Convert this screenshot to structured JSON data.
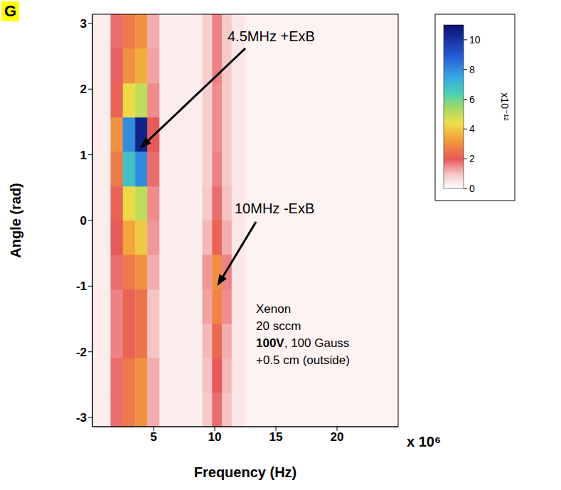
{
  "chart_data": {
    "type": "heatmap",
    "panel": "G",
    "x_label": "Frequency (Hz)",
    "x_multiplier": "x 10⁶",
    "y_label": "Angle (rad)",
    "xlim": [
      0,
      25
    ],
    "xticks": [
      5,
      10,
      15,
      20
    ],
    "ylim": [
      -3.14,
      3.14
    ],
    "yticks": [
      -3,
      -2,
      -1,
      0,
      1,
      2,
      3
    ],
    "grid": false,
    "x_bins": [
      0,
      1.5,
      2.5,
      3.5,
      4.5,
      5.5,
      9,
      9.8,
      10.6,
      11.4,
      12.5,
      25
    ],
    "y_bins": [
      -3.14,
      -2.62,
      -2.09,
      -1.57,
      -1.05,
      -0.52,
      0,
      0.52,
      1.05,
      1.57,
      2.09,
      2.62,
      3.14
    ],
    "cells": [
      [
        0.3,
        1.8,
        2.6,
        3,
        1.2,
        0.3,
        0.9,
        1.8,
        1,
        0.4,
        0.2
      ],
      [
        0.3,
        1.8,
        2.6,
        3,
        1.2,
        0.3,
        1,
        2,
        1.1,
        0.4,
        0.2
      ],
      [
        0.3,
        1.6,
        2.2,
        2.5,
        1,
        0.3,
        1.1,
        2.3,
        1.2,
        0.4,
        0.2
      ],
      [
        0.3,
        1.6,
        2.2,
        2.5,
        1,
        0.3,
        1.3,
        2.8,
        1.5,
        0.4,
        0.2
      ],
      [
        0.3,
        1.8,
        2.6,
        3,
        1.2,
        0.3,
        1.4,
        3,
        1.6,
        0.4,
        0.2
      ],
      [
        0.3,
        2,
        3.4,
        4,
        1.4,
        0.3,
        1.1,
        2.2,
        1.2,
        0.4,
        0.2
      ],
      [
        0.3,
        2.2,
        4.3,
        5,
        1.5,
        0.3,
        0.9,
        1.8,
        1,
        0.4,
        0.2
      ],
      [
        0.3,
        2.6,
        6.8,
        8,
        1.8,
        0.3,
        0.8,
        1.6,
        0.9,
        0.4,
        0.2
      ],
      [
        0.3,
        3,
        8,
        10.5,
        2,
        0.3,
        0.8,
        1.5,
        0.9,
        0.4,
        0.2
      ],
      [
        0.3,
        2.2,
        4.3,
        5,
        1.5,
        0.3,
        0.8,
        1.5,
        0.9,
        0.4,
        0.2
      ],
      [
        0.3,
        1.9,
        3,
        3.5,
        1.3,
        0.3,
        0.8,
        1.6,
        0.9,
        0.4,
        0.2
      ],
      [
        0.3,
        1.8,
        2.6,
        3,
        1.2,
        0.3,
        0.8,
        1.6,
        0.9,
        0.4,
        0.2
      ]
    ],
    "colorbar": {
      "range": [
        0,
        11
      ],
      "ticks": [
        0,
        2,
        4,
        6,
        8,
        10
      ],
      "label": "x10⁻¹²"
    },
    "annotations": [
      {
        "text": "4.5MHz +ExB",
        "x": 3.9,
        "y": 1.1
      },
      {
        "text": "10MHz -ExB",
        "x": 10.2,
        "y": -1.0
      }
    ],
    "notes": [
      "Xenon",
      "20 sccm",
      "100V, 100 Gauss",
      "+0.5 cm (outside)"
    ]
  }
}
